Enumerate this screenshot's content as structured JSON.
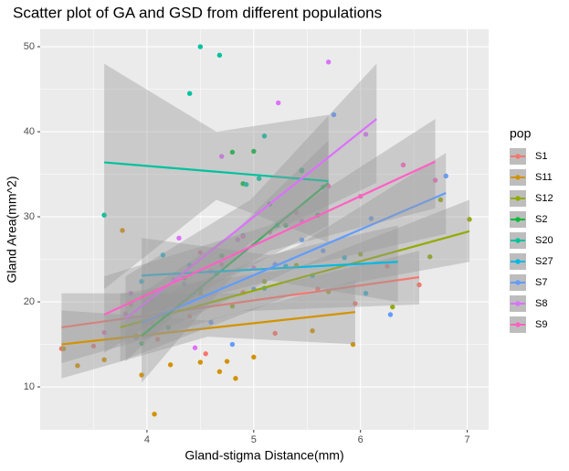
{
  "chart_data": {
    "type": "scatter",
    "title": "Scatter plot of GA and GSD from different populations",
    "x_label": "Gland-stigma Distance(mm)",
    "y_label": "Gland Area(mm^2)",
    "legend_title": "pop",
    "legend_position": "right",
    "grid": true,
    "xlim": [
      3.0,
      7.2
    ],
    "ylim": [
      4.95,
      52.05
    ],
    "xticks": [
      4,
      5,
      6,
      7
    ],
    "yticks": [
      10,
      20,
      30,
      40,
      50
    ],
    "minor_xticks": [
      3.5,
      4.5,
      5.5,
      6.5
    ],
    "minor_yticks": [
      15,
      25,
      35,
      45
    ],
    "band_color": "#999999",
    "series": [
      {
        "name": "S1",
        "color": "#F8766D",
        "x": [
          3.2,
          3.5,
          3.85,
          4.1,
          4.4,
          4.55,
          4.9,
          5.2,
          5.6,
          5.95,
          6.25,
          6.55
        ],
        "values": [
          14.5,
          14.8,
          19.7,
          15.6,
          18.3,
          13.9,
          21.1,
          16.3,
          21.5,
          19.8,
          24.2,
          22
        ],
        "fit": {
          "x": [
            3.2,
            6.55
          ],
          "y": [
            17,
            22.9
          ]
        },
        "band": {
          "x": [
            3.2,
            4.9,
            6.55
          ],
          "lower": [
            12.8,
            18.9,
            19.7
          ],
          "upper": [
            21,
            21,
            26
          ]
        }
      },
      {
        "name": "S11",
        "color": "#D39200",
        "x": [
          3.22,
          3.35,
          3.6,
          3.77,
          3.95,
          4.07,
          4.22,
          4.5,
          4.68,
          4.75,
          4.83,
          5.0,
          5.55,
          5.93
        ],
        "values": [
          14.5,
          12.5,
          13.2,
          28.4,
          11.4,
          6.8,
          12.6,
          12.9,
          11.8,
          13.0,
          11.0,
          13.5,
          16.6,
          15.0
        ],
        "fit": {
          "x": [
            3.2,
            5.95
          ],
          "y": [
            15,
            18.8
          ]
        },
        "band": {
          "x": [
            3.2,
            4.57,
            5.95
          ],
          "lower": [
            11,
            15.9,
            15
          ],
          "upper": [
            19,
            17.8,
            22.5
          ]
        }
      },
      {
        "name": "S12",
        "color": "#93AA00",
        "x": [
          3.9,
          4.2,
          4.5,
          4.8,
          5.1,
          5.4,
          5.7,
          6.0,
          6.3,
          6.65,
          6.75,
          7.02
        ],
        "values": [
          16,
          18.5,
          21,
          19.5,
          22.4,
          24.3,
          21.2,
          25.6,
          19.4,
          25.3,
          32,
          29.7
        ],
        "fit": {
          "x": [
            3.75,
            7.02
          ],
          "y": [
            17,
            28.3
          ]
        },
        "band": {
          "x": [
            3.75,
            5.4,
            7.02
          ],
          "lower": [
            13,
            21,
            24.7
          ],
          "upper": [
            21,
            24,
            32
          ]
        }
      },
      {
        "name": "S2",
        "color": "#00BA38",
        "x": [
          3.95,
          4.2,
          4.35,
          4.5,
          4.7,
          4.8,
          4.9,
          5.0,
          5.15,
          5.3,
          5.45,
          5.6
        ],
        "values": [
          15.1,
          17,
          22.8,
          21.5,
          25.4,
          37.6,
          33.9,
          37.7,
          31.5,
          29,
          35.4,
          30.2
        ],
        "fit": {
          "x": [
            3.95,
            5.7
          ],
          "y": [
            16,
            34
          ]
        },
        "band": {
          "x": [
            3.95,
            4.8,
            5.7
          ],
          "lower": [
            10.5,
            23,
            29
          ],
          "upper": [
            21,
            28,
            39
          ]
        }
      },
      {
        "name": "S20",
        "color": "#00C19F",
        "x": [
          3.6,
          4.4,
          4.5,
          4.68,
          4.93,
          5.05,
          5.1,
          5.22,
          5.45,
          5.65
        ],
        "values": [
          30.2,
          44.5,
          50,
          49,
          33.8,
          34.5,
          39.5,
          29,
          35.5,
          33.5
        ],
        "fit": {
          "x": [
            3.6,
            5.7
          ],
          "y": [
            36.4,
            34.2
          ]
        },
        "band": {
          "x": [
            3.6,
            4.65,
            5.7
          ],
          "lower": [
            21.5,
            32,
            27
          ],
          "upper": [
            48,
            40,
            42
          ]
        }
      },
      {
        "name": "S27",
        "color": "#00B9E3",
        "x": [
          3.95,
          4.15,
          4.4,
          4.65,
          4.9,
          5.1,
          5.3,
          5.55,
          5.85,
          6.05
        ],
        "values": [
          22.4,
          25.5,
          24.3,
          23.3,
          27.8,
          21.6,
          24.2,
          23.1,
          25.2,
          21
        ],
        "fit": {
          "x": [
            3.95,
            6.35
          ],
          "y": [
            23.1,
            24.7
          ]
        },
        "band": {
          "x": [
            3.95,
            5.15,
            6.35
          ],
          "lower": [
            18.5,
            22.5,
            20
          ],
          "upper": [
            27.5,
            25.5,
            29
          ]
        }
      },
      {
        "name": "S7",
        "color": "#619CFF",
        "x": [
          3.9,
          4.15,
          4.35,
          4.6,
          4.8,
          5.0,
          5.2,
          5.45,
          5.65,
          5.75,
          6.1,
          6.28,
          6.8
        ],
        "values": [
          15.8,
          19.2,
          22.1,
          17.6,
          15,
          21.5,
          24.4,
          27.3,
          26,
          42,
          29.8,
          18.5,
          34.8
        ],
        "fit": {
          "x": [
            3.95,
            6.8
          ],
          "y": [
            17.5,
            32.8
          ]
        },
        "band": {
          "x": [
            3.95,
            5.4,
            6.8
          ],
          "lower": [
            15.5,
            24,
            28
          ],
          "upper": [
            20,
            26.5,
            37.5
          ]
        }
      },
      {
        "name": "S8",
        "color": "#DB72FB",
        "x": [
          3.85,
          4.05,
          4.3,
          4.45,
          4.6,
          4.7,
          4.85,
          5.0,
          5.23,
          5.45,
          5.7,
          6.05
        ],
        "values": [
          21,
          17.5,
          27.5,
          14.6,
          23.6,
          37.1,
          27.3,
          24,
          43.4,
          29.5,
          48.2,
          39.7
        ],
        "fit": {
          "x": [
            3.8,
            6.15
          ],
          "y": [
            18,
            41.5
          ]
        },
        "band": {
          "x": [
            3.8,
            4.97,
            6.15
          ],
          "lower": [
            13,
            27,
            34
          ],
          "upper": [
            23,
            32,
            48
          ]
        }
      },
      {
        "name": "S9",
        "color": "#FF61C3",
        "x": [
          3.6,
          3.8,
          4.05,
          4.25,
          4.5,
          4.7,
          4.9,
          5.15,
          5.4,
          5.7,
          6.0,
          6.4,
          6.7
        ],
        "values": [
          16.4,
          18.6,
          20.3,
          22.6,
          25.8,
          24.4,
          27.7,
          28.2,
          30.5,
          33.6,
          32.4,
          36.1,
          34.3
        ],
        "fit": {
          "x": [
            3.6,
            6.7
          ],
          "y": [
            18.5,
            36.5
          ]
        },
        "band": {
          "x": [
            3.6,
            5.15,
            6.7
          ],
          "lower": [
            14,
            26,
            31
          ],
          "upper": [
            23,
            29,
            41.5
          ]
        }
      }
    ]
  }
}
